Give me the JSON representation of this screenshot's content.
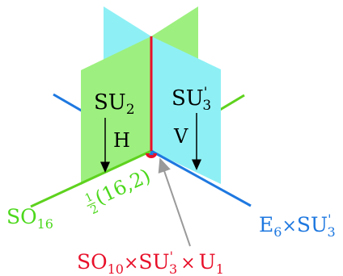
{
  "colors": {
    "green_plane": "#9df07f",
    "cyan_plane": "#8ef0f5",
    "red_line": "#e8102a",
    "blue_line": "#1e78e0",
    "green_line": "#5ed21e",
    "gray_arrow": "#9a9a9a",
    "green_text": "#4cd81c",
    "blue_text": "#1e78e0",
    "red_text": "#e8102a"
  },
  "labels": {
    "su2": {
      "base": "SU",
      "sub": "2"
    },
    "su3p": {
      "base": "SU",
      "sup": "'",
      "sub": "3"
    },
    "h": "H",
    "v": "V",
    "so16": {
      "base": "SO",
      "sub": "16"
    },
    "rep": {
      "num": "1",
      "den": "2",
      "body": "(16,2)"
    },
    "e6": {
      "e": "E",
      "e_sub": "6",
      "times": "×",
      "su": "SU",
      "su_sup": "'",
      "su_sub": "3"
    },
    "so10": {
      "so": "SO",
      "so_sub": "10",
      "times1": "×",
      "su": "SU",
      "su_sup": "'",
      "su_sub": "3",
      "times2": "×",
      "u": "U",
      "u_sub": "1"
    }
  }
}
